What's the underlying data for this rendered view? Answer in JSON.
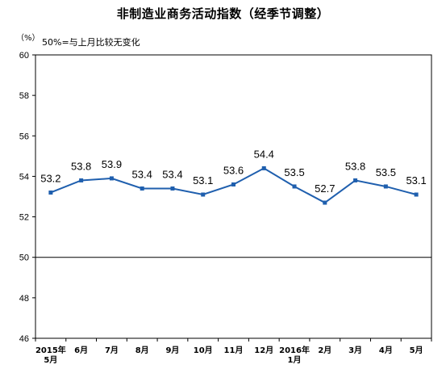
{
  "title": "非制造业商务活动指数（经季节调整）",
  "unit": "（%）",
  "note": "50%=与上月比较无变化",
  "colors": {
    "line": "#1f5fae",
    "axis": "#000000",
    "reference": "#000000"
  },
  "chart_data": {
    "type": "line",
    "title": "非制造业商务活动指数（经季节调整）",
    "ylabel": "（%）",
    "ylim": [
      46,
      60
    ],
    "yticks": [
      46,
      48,
      50,
      52,
      54,
      56,
      58,
      60
    ],
    "reference_line": 50,
    "grid": false,
    "categories": [
      [
        "2015年",
        "5月"
      ],
      [
        "6月"
      ],
      [
        "7月"
      ],
      [
        "8月"
      ],
      [
        "9月"
      ],
      [
        "10月"
      ],
      [
        "11月"
      ],
      [
        "12月"
      ],
      [
        "2016年",
        "1月"
      ],
      [
        "2月"
      ],
      [
        "3月"
      ],
      [
        "4月"
      ],
      [
        "5月"
      ]
    ],
    "series": [
      {
        "values": [
          53.2,
          53.8,
          53.9,
          53.4,
          53.4,
          53.1,
          53.6,
          54.4,
          53.5,
          52.7,
          53.8,
          53.5,
          53.1
        ]
      }
    ]
  }
}
